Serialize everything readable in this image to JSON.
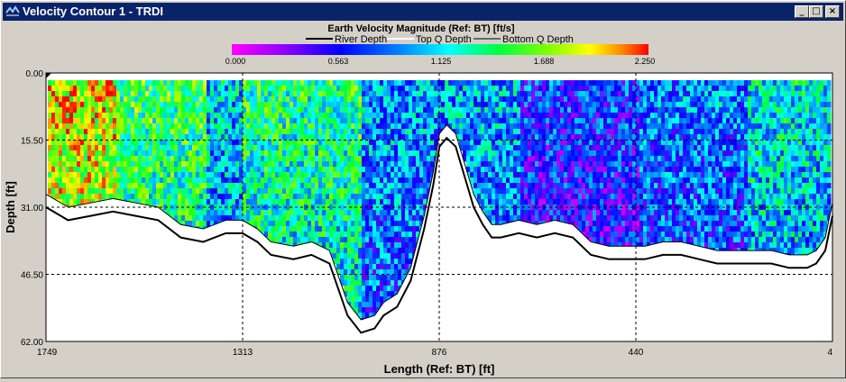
{
  "window": {
    "title": "Velocity Contour 1 - TRDI",
    "minimize_symbol": "_",
    "maximize_symbol": "□",
    "close_symbol": "×"
  },
  "legend": {
    "title": "Earth Velocity Magnitude (Ref: BT) [ft/s]",
    "river_depth": "River Depth",
    "top_q": "Top Q Depth",
    "bottom_q": "Bottom Q Depth",
    "ticks": [
      "0.000",
      "0.563",
      "1.125",
      "1.688",
      "2.250"
    ]
  },
  "chart_data": {
    "type": "heatmap",
    "title": "Earth Velocity Magnitude (Ref: BT) [ft/s]",
    "xlabel": "Length (Ref: BT) [ft]",
    "ylabel": "Depth [ft]",
    "x_ticks": [
      "1749",
      "1313",
      "876",
      "440",
      "4"
    ],
    "y_ticks": [
      "0.00",
      "15.50",
      "31.00",
      "46.50",
      "62.00"
    ],
    "xlim": [
      1749,
      4
    ],
    "ylim": [
      0,
      62
    ],
    "color_range": [
      0,
      2.25
    ],
    "grid": true,
    "colors": {
      "river_depth": "#000000",
      "top_q": "#ffffff",
      "bottom_q": "#000000",
      "background": "#ffffff"
    },
    "river_depth_profile": {
      "x": [
        1749,
        1700,
        1650,
        1600,
        1550,
        1500,
        1450,
        1400,
        1350,
        1313,
        1280,
        1250,
        1200,
        1160,
        1120,
        1100,
        1080,
        1050,
        1020,
        1000,
        970,
        940,
        910,
        890,
        876,
        860,
        840,
        820,
        800,
        780,
        760,
        740,
        700,
        660,
        620,
        580,
        540,
        500,
        460,
        440,
        420,
        380,
        340,
        300,
        260,
        220,
        180,
        140,
        100,
        60,
        40,
        20,
        4
      ],
      "depth": [
        31,
        34,
        33,
        32,
        33,
        34,
        38,
        39,
        37,
        37,
        39,
        42,
        43,
        42,
        44,
        50,
        56,
        60,
        59,
        56,
        54,
        48,
        36,
        26,
        17,
        15,
        17,
        24,
        31,
        35,
        38,
        38,
        37,
        38,
        37,
        38,
        42,
        43,
        43,
        43,
        43,
        42,
        42,
        43,
        44,
        44,
        44,
        44,
        45,
        45,
        44,
        41,
        33
      ]
    },
    "bottom_q_profile": {
      "x": [
        1749,
        1700,
        1650,
        1600,
        1550,
        1500,
        1450,
        1400,
        1350,
        1313,
        1280,
        1250,
        1200,
        1160,
        1120,
        1100,
        1080,
        1050,
        1020,
        1000,
        970,
        940,
        910,
        890,
        876,
        860,
        840,
        820,
        800,
        780,
        760,
        740,
        700,
        660,
        620,
        580,
        540,
        500,
        460,
        440,
        420,
        380,
        340,
        300,
        260,
        220,
        180,
        140,
        100,
        60,
        40,
        20,
        4
      ],
      "depth": [
        28,
        31,
        30,
        29,
        30,
        31,
        35,
        36,
        34,
        34,
        36,
        39,
        40,
        39,
        41,
        47,
        53,
        57,
        56,
        53,
        51,
        45,
        33,
        23,
        14,
        12,
        14,
        21,
        28,
        32,
        35,
        35,
        34,
        35,
        34,
        35,
        39,
        40,
        40,
        40,
        40,
        39,
        39,
        40,
        41,
        41,
        41,
        41,
        42,
        42,
        41,
        38,
        30
      ]
    },
    "velocity_zones": [
      {
        "x_from": 1749,
        "x_to": 1600,
        "typical_ft_s": 1.9
      },
      {
        "x_from": 1600,
        "x_to": 1400,
        "typical_ft_s": 1.5
      },
      {
        "x_from": 1400,
        "x_to": 1313,
        "typical_ft_s": 1.1
      },
      {
        "x_from": 1313,
        "x_to": 1050,
        "typical_ft_s": 1.4
      },
      {
        "x_from": 1050,
        "x_to": 900,
        "typical_ft_s": 1.0
      },
      {
        "x_from": 876,
        "x_to": 700,
        "typical_ft_s": 1.0
      },
      {
        "x_from": 700,
        "x_to": 440,
        "typical_ft_s": 0.7
      },
      {
        "x_from": 440,
        "x_to": 200,
        "typical_ft_s": 0.9
      },
      {
        "x_from": 200,
        "x_to": 4,
        "typical_ft_s": 1.2
      }
    ]
  }
}
